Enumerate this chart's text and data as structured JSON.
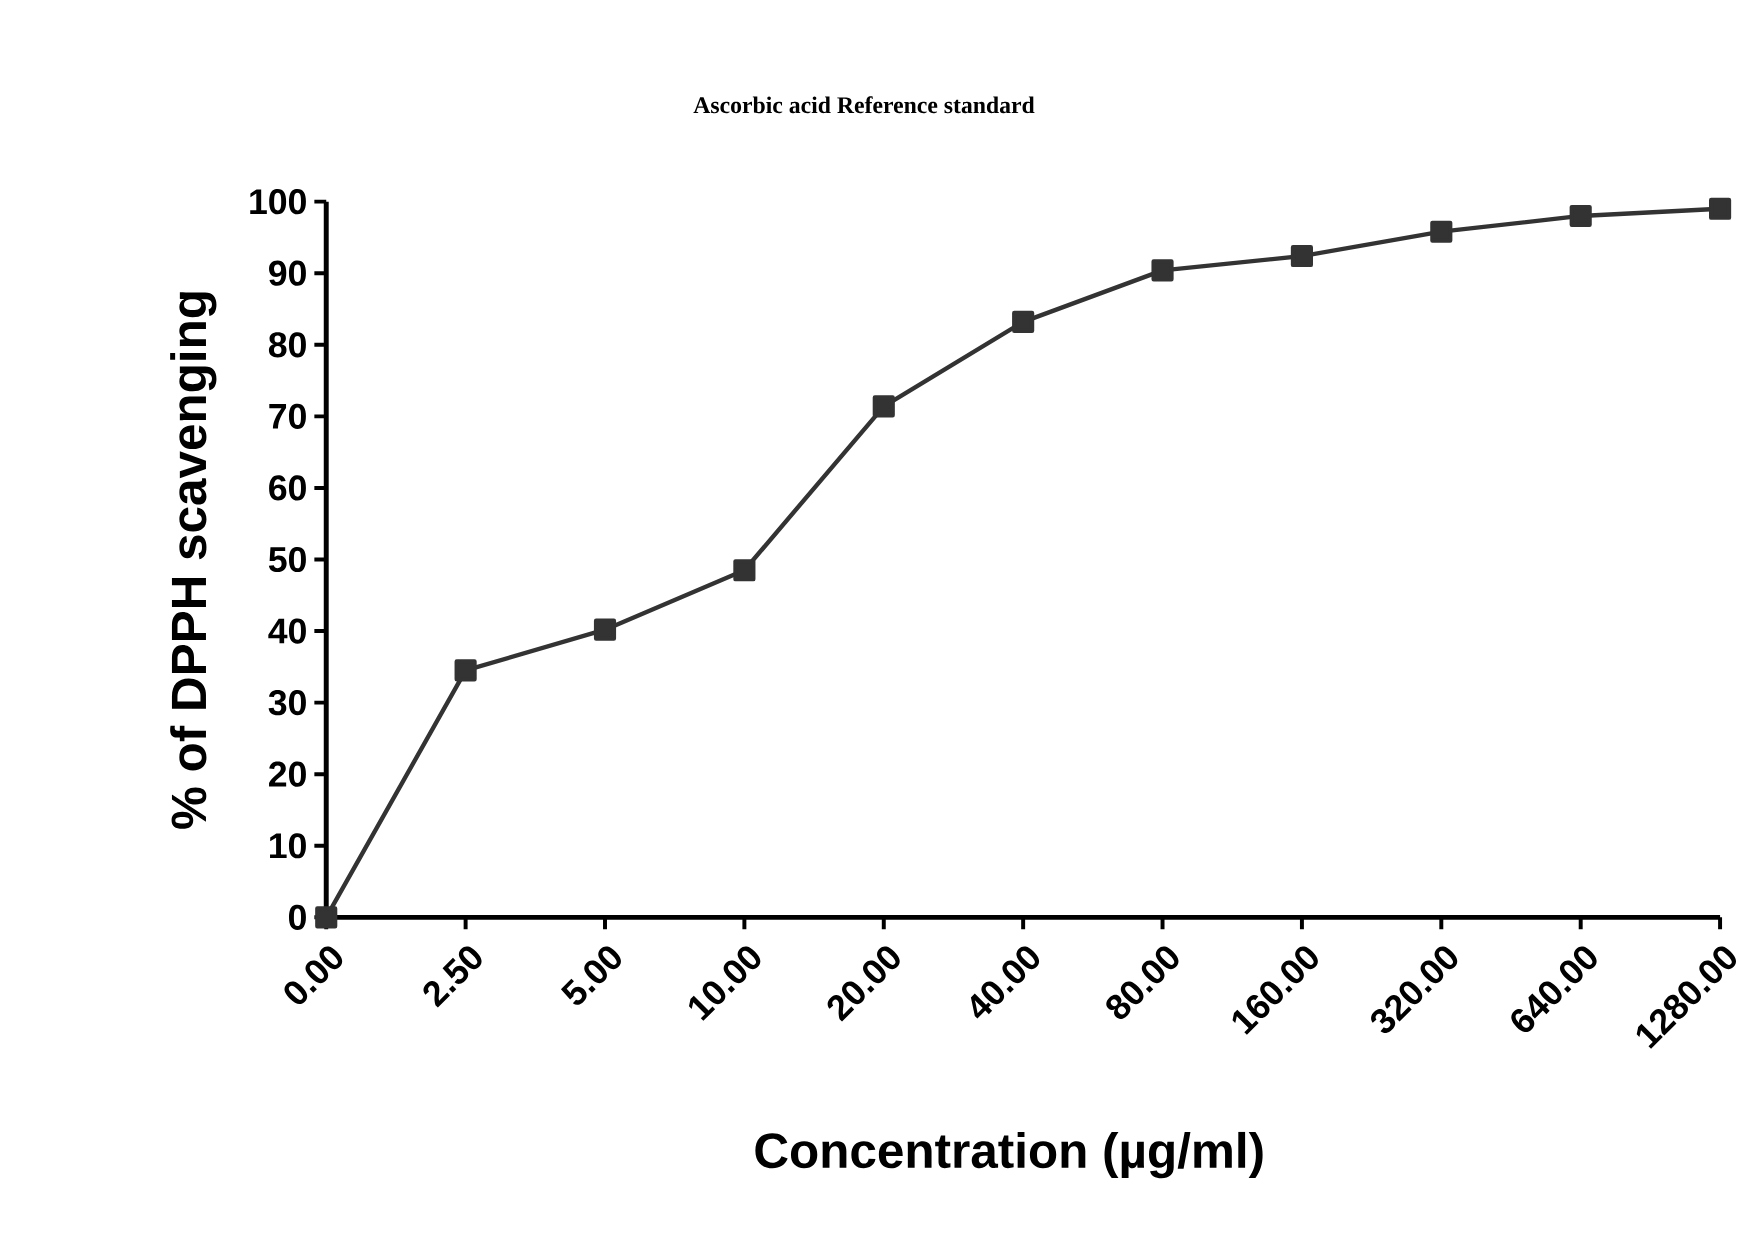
{
  "chart_data": {
    "type": "line",
    "title": "Ascorbic acid Reference standard",
    "xlabel": "Concentration (µg/ml)",
    "ylabel": "% of DPPH scavenging",
    "categories": [
      "0.00",
      "2.50",
      "5.00",
      "10.00",
      "20.00",
      "40.00",
      "80.00",
      "160.00",
      "320.00",
      "640.00",
      "1280.00"
    ],
    "series": [
      {
        "color": "#333333",
        "values": [
          0,
          34.5,
          40.2,
          48.5,
          71.4,
          83.2,
          90.4,
          92.4,
          95.8,
          98.0,
          99.0
        ]
      }
    ],
    "ylim": [
      0,
      100
    ],
    "yticks": [
      0,
      10,
      20,
      30,
      40,
      50,
      60,
      70,
      80,
      90,
      100
    ],
    "grid": false,
    "marker": "square",
    "line_style": "solid"
  }
}
